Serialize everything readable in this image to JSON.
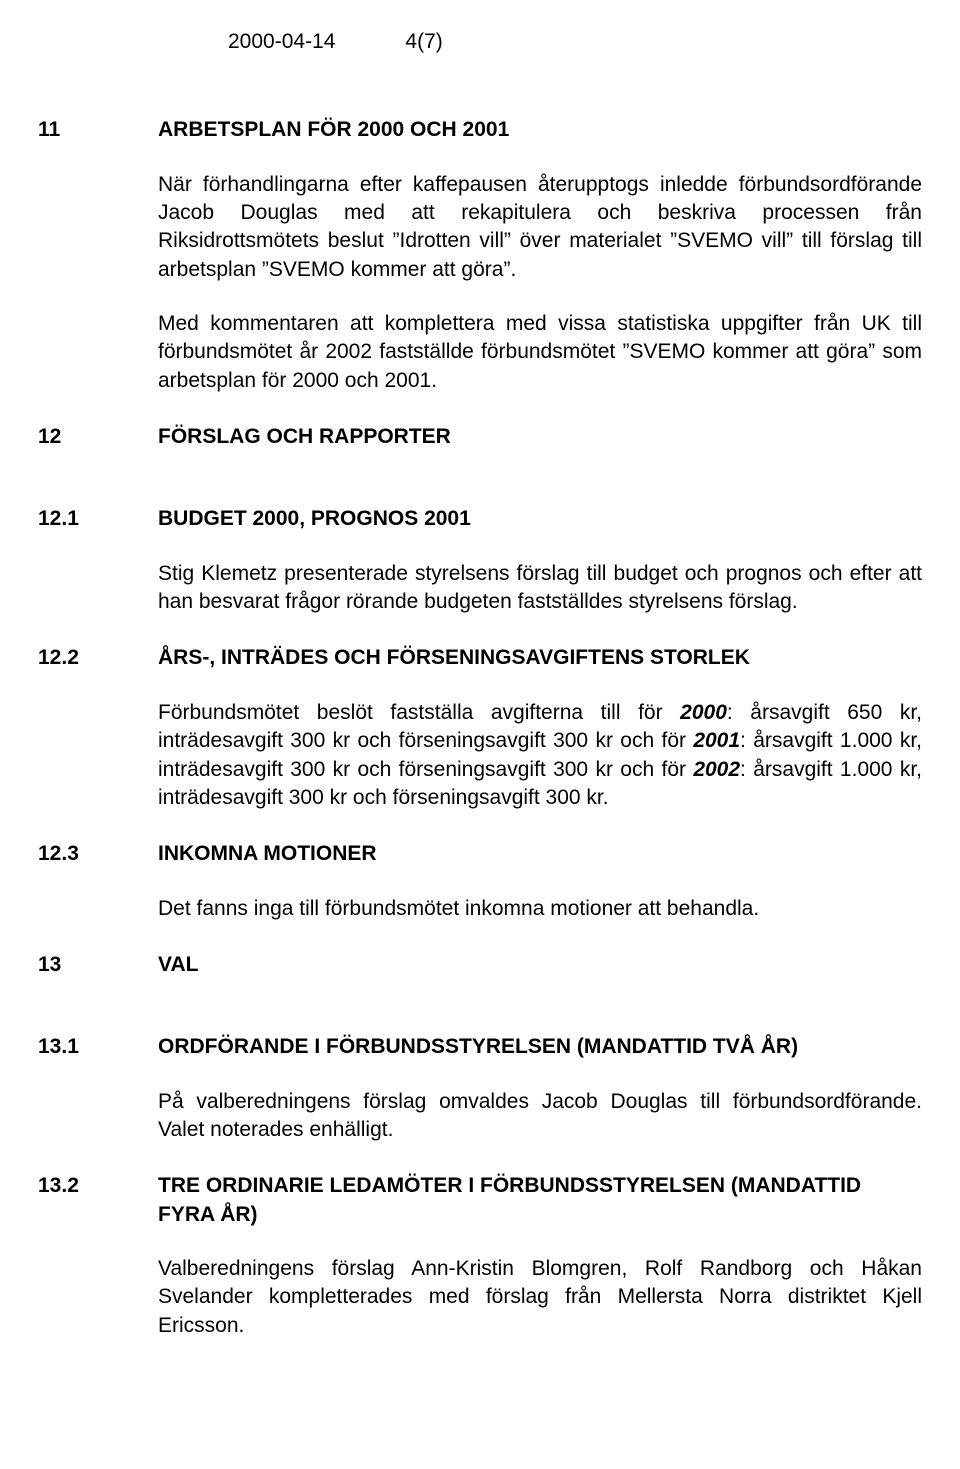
{
  "header": {
    "date": "2000-04-14",
    "page": "4(7)"
  },
  "sections": [
    {
      "num": "11",
      "heading": "ARBETSPLAN FÖR 2000 OCH 2001",
      "paras": [
        "När förhandlingarna efter kaffepausen återupptogs inledde förbundsordförande Jacob Douglas med att rekapitulera och beskriva processen från Riksidrottsmötets beslut \"Idrotten vill\" över materialet \"SVEMO vill\" till förslag till arbetsplan \"SVEMO kommer att göra\".",
        "Med kommentaren att komplettera med vissa statistiska uppgifter från UK till förbundsmötet år 2002 fastställde förbundsmötet \"SVEMO kommer att göra\" som arbetsplan för 2000 och 2001."
      ]
    },
    {
      "num": "12",
      "heading": "FÖRSLAG OCH RAPPORTER",
      "paras": []
    },
    {
      "num": "12.1",
      "heading": "BUDGET 2000, PROGNOS 2001",
      "paras": [
        "Stig Klemetz presenterade styrelsens förslag till budget och prognos och efter att han besvarat frågor rörande budgeten fastställdes styrelsens förslag."
      ]
    },
    {
      "num": "12.2",
      "heading": "ÅRS-, INTRÄDES OCH FÖRSENINGSAVGIFTENS STORLEK",
      "richpara": {
        "parts": [
          {
            "t": "Förbundsmötet beslöt fastställa avgifterna till för "
          },
          {
            "t": "2000",
            "bi": true
          },
          {
            "t": ": årsavgift 650 kr, inträdesavgift 300 kr och förseningsavgift 300 kr och för "
          },
          {
            "t": "2001",
            "bi": true
          },
          {
            "t": ": årsavgift 1.000 kr, inträdesavgift 300 kr och förseningsavgift 300 kr och för "
          },
          {
            "t": "2002",
            "bi": true
          },
          {
            "t": ": årsavgift 1.000 kr, inträdesavgift 300 kr och förseningsavgift 300 kr."
          }
        ]
      }
    },
    {
      "num": "12.3",
      "heading": "INKOMNA MOTIONER",
      "paras": [
        "Det fanns inga till förbundsmötet inkomna motioner att behandla."
      ]
    },
    {
      "num": "13",
      "heading": "VAL",
      "paras": []
    },
    {
      "num": "13.1",
      "heading": "ORDFÖRANDE I FÖRBUNDSSTYRELSEN (MANDATTID TVÅ ÅR)",
      "paras": [
        "På valberedningens förslag omvaldes Jacob Douglas till förbundsordförande. Valet noterades enhälligt."
      ]
    },
    {
      "num": "13.2",
      "heading": "TRE ORDINARIE LEDAMÖTER I FÖRBUNDSSTYRELSEN (MANDATTID FYRA ÅR)",
      "paras": [
        "Valberedningens förslag Ann-Kristin Blomgren, Rolf Randborg och Håkan Svelander kompletterades med förslag från Mellersta Norra distriktet Kjell Ericsson."
      ]
    }
  ]
}
